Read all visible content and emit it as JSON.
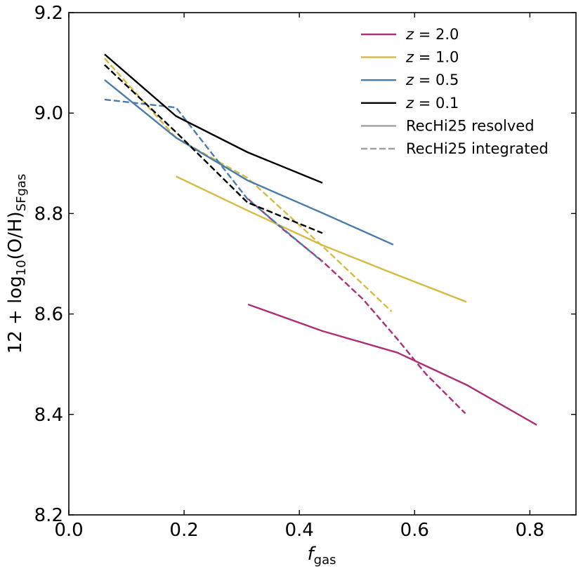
{
  "chart_data": {
    "type": "line",
    "title": "",
    "xlabel_main": "f",
    "xlabel_sub": "gas",
    "ylabel_prefix": "12 + log",
    "ylabel_sub1": "10",
    "ylabel_mid": "(O/H)",
    "ylabel_sub2": "SFgas",
    "xlim": [
      0.0,
      0.88
    ],
    "ylim": [
      8.2,
      9.2
    ],
    "xticks": [
      0.0,
      0.2,
      0.4,
      0.6,
      0.8
    ],
    "xtick_labels": [
      "0.0",
      "0.2",
      "0.4",
      "0.6",
      "0.8"
    ],
    "yticks": [
      8.2,
      8.4,
      8.6,
      8.8,
      9.0,
      9.2
    ],
    "ytick_labels": [
      "8.2",
      "8.4",
      "8.6",
      "8.8",
      "9.0",
      "9.2"
    ],
    "grid": false,
    "legend_position": "top-right",
    "legend": [
      {
        "label_var": "z",
        "label_eq": " = 2.0",
        "color": "#ab3074",
        "style": "solid"
      },
      {
        "label_var": "z",
        "label_eq": " = 1.0",
        "color": "#d3bb44",
        "style": "solid"
      },
      {
        "label_var": "z",
        "label_eq": " = 0.5",
        "color": "#4a7caa",
        "style": "solid"
      },
      {
        "label_var": "z",
        "label_eq": " = 0.1",
        "color": "#000000",
        "style": "solid"
      },
      {
        "label_var": "",
        "label_eq": "RecHi25 resolved",
        "color": "#a0a0a0",
        "style": "solid"
      },
      {
        "label_var": "",
        "label_eq": "RecHi25 integrated",
        "color": "#a0a0a0",
        "style": "dashed"
      }
    ],
    "series": [
      {
        "name": "z=2.0 resolved",
        "color": "#ab3074",
        "style": "solid",
        "x": [
          0.311,
          0.44,
          0.57,
          0.69,
          0.812
        ],
        "y": [
          8.619,
          8.566,
          8.523,
          8.459,
          8.379
        ]
      },
      {
        "name": "z=2.0 integrated",
        "color": "#ab3074",
        "style": "dashed",
        "x": [
          0.311,
          0.37,
          0.44,
          0.51,
          0.57,
          0.62,
          0.688
        ],
        "y": [
          8.829,
          8.77,
          8.705,
          8.63,
          8.55,
          8.48,
          8.402
        ]
      },
      {
        "name": "z=1.0 resolved",
        "color": "#d3bb44",
        "style": "solid",
        "x": [
          0.186,
          0.31,
          0.44,
          0.56,
          0.69
        ],
        "y": [
          8.874,
          8.806,
          8.737,
          8.682,
          8.624
        ]
      },
      {
        "name": "z=1.0 integrated",
        "color": "#d3bb44",
        "style": "dashed",
        "x": [
          0.062,
          0.186,
          0.31,
          0.44,
          0.56
        ],
        "y": [
          9.109,
          8.951,
          8.871,
          8.735,
          8.605
        ]
      },
      {
        "name": "z=0.5 resolved",
        "color": "#4a7caa",
        "style": "solid",
        "x": [
          0.062,
          0.186,
          0.31,
          0.44,
          0.563
        ],
        "y": [
          9.066,
          8.951,
          8.866,
          8.801,
          8.738
        ]
      },
      {
        "name": "z=0.5 integrated",
        "color": "#4a7caa",
        "style": "dashed",
        "x": [
          0.062,
          0.186,
          0.31,
          0.44
        ],
        "y": [
          9.027,
          9.011,
          8.829,
          8.704
        ]
      },
      {
        "name": "z=0.1 resolved",
        "color": "#000000",
        "style": "solid",
        "x": [
          0.062,
          0.186,
          0.31,
          0.44
        ],
        "y": [
          9.117,
          8.994,
          8.922,
          8.861
        ]
      },
      {
        "name": "z=0.1 integrated",
        "color": "#000000",
        "style": "dashed",
        "x": [
          0.062,
          0.186,
          0.31,
          0.44
        ],
        "y": [
          9.096,
          8.962,
          8.822,
          8.761
        ]
      }
    ]
  }
}
